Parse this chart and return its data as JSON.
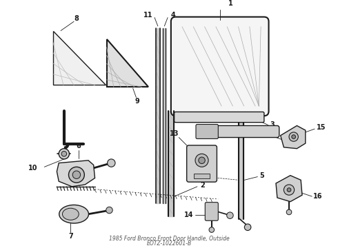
{
  "title": "1985 Ford Bronco Front Door Handle, Outside",
  "part_number": "EOTZ-1022601-B",
  "background_color": "#ffffff",
  "line_color": "#1a1a1a",
  "fig_w": 4.9,
  "fig_h": 3.6,
  "dpi": 100
}
